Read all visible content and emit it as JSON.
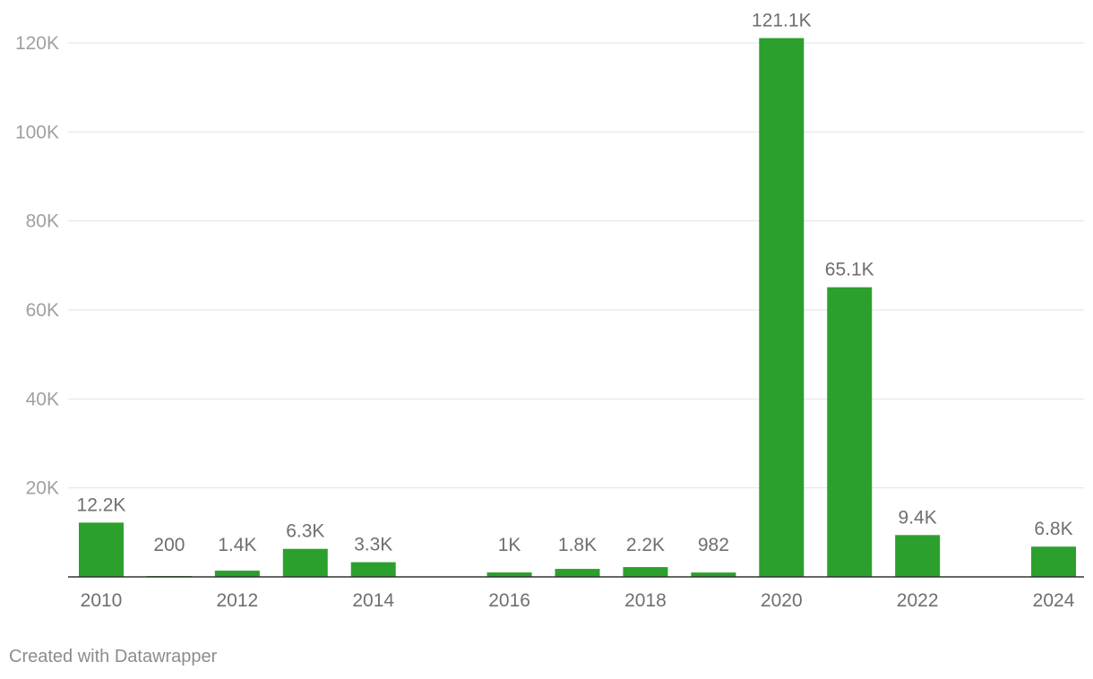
{
  "chart_data": {
    "type": "bar",
    "title": "",
    "xlabel": "",
    "ylabel": "",
    "categories": [
      "2010",
      "2011",
      "2012",
      "2013",
      "2014",
      "2015",
      "2016",
      "2017",
      "2018",
      "2019",
      "2020",
      "2021",
      "2022",
      "2023",
      "2024"
    ],
    "values": [
      12200,
      200,
      1400,
      6300,
      3300,
      0,
      1000,
      1800,
      2200,
      982,
      121100,
      65100,
      9400,
      0,
      6800
    ],
    "data_labels": [
      "12.2K",
      "200",
      "1.4K",
      "6.3K",
      "3.3K",
      "",
      "1K",
      "1.8K",
      "2.2K",
      "982",
      "121.1K",
      "65.1K",
      "9.4K",
      "",
      "6.8K"
    ],
    "x_tick_labels": [
      "2010",
      "",
      "2012",
      "",
      "2014",
      "",
      "2016",
      "",
      "2018",
      "",
      "2020",
      "",
      "2022",
      "",
      "2024"
    ],
    "y_ticks": [
      20000,
      40000,
      60000,
      80000,
      100000,
      120000
    ],
    "y_tick_labels": [
      "20K",
      "40K",
      "60K",
      "80K",
      "100K",
      "120K"
    ],
    "ylim": [
      0,
      120000
    ],
    "grid": true,
    "legend": "none",
    "bar_color": "#2ca02c"
  },
  "credit": "Created with Datawrapper"
}
